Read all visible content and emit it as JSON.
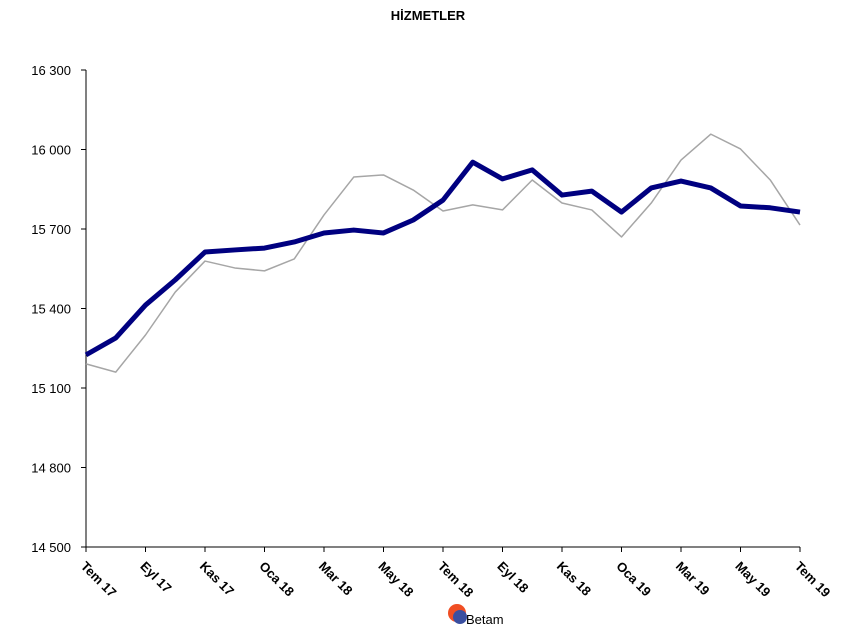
{
  "chart_data": {
    "type": "line",
    "title": "HİZMETLER",
    "categories": [
      "Tem 17",
      null,
      "Eyl 17",
      null,
      "Kas 17",
      null,
      "Oca 18",
      null,
      "Mar 18",
      null,
      "May 18",
      null,
      "Tem 18",
      null,
      "Eyl 18",
      null,
      "Kas 18",
      null,
      "Oca 19",
      null,
      "Mar 19",
      null,
      "May 19",
      null,
      "Tem 19"
    ],
    "series": [
      {
        "color": "#000080",
        "values": [
          15225,
          15289,
          15413,
          15508,
          15613,
          15621,
          15628,
          15651,
          15685,
          15696,
          15685,
          15734,
          15809,
          15952,
          15889,
          15923,
          15828,
          15843,
          15764,
          15855,
          15881,
          15855,
          15787,
          15780,
          15764
        ]
      },
      {
        "color": "#a6a6a6",
        "values": [
          15191,
          15160,
          15300,
          15462,
          15579,
          15553,
          15542,
          15587,
          15753,
          15896,
          15904,
          15847,
          15768,
          15791,
          15772,
          15885,
          15798,
          15772,
          15670,
          15798,
          15960,
          16058,
          16002,
          15885,
          15715
        ]
      }
    ],
    "ylim": [
      14500,
      16300
    ],
    "yticks": [
      {
        "value": 14500,
        "label": "14 500"
      },
      {
        "value": 14800,
        "label": "14 800"
      },
      {
        "value": 15100,
        "label": "15 100"
      },
      {
        "value": 15400,
        "label": "15 400"
      },
      {
        "value": 15700,
        "label": "15 700"
      },
      {
        "value": 16000,
        "label": "16 000"
      },
      {
        "value": 16300,
        "label": "16 300"
      }
    ],
    "logo": "Betam"
  }
}
